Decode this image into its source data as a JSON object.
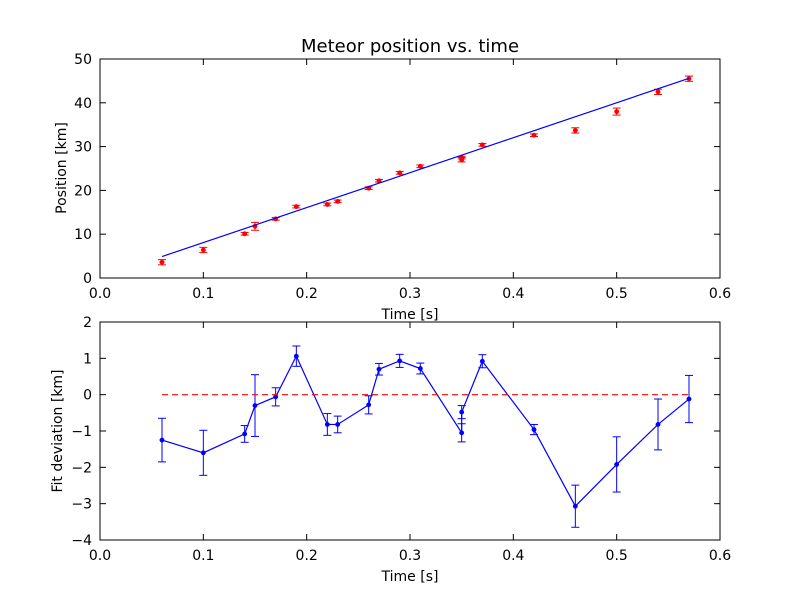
{
  "chart_data": [
    {
      "type": "scatter",
      "title": "Meteor position vs. time",
      "xlabel": "Time [s]",
      "ylabel": "Position [km]",
      "xlim": [
        0.0,
        0.6
      ],
      "ylim": [
        0,
        50
      ],
      "xticks": [
        "0.0",
        "0.1",
        "0.2",
        "0.3",
        "0.4",
        "0.5",
        "0.6"
      ],
      "yticks": [
        "0",
        "10",
        "20",
        "30",
        "40",
        "50"
      ],
      "grid": false,
      "series": [
        {
          "kind": "points_with_errorbars",
          "color": "#ff0000",
          "x": [
            0.06,
            0.1,
            0.14,
            0.15,
            0.17,
            0.19,
            0.22,
            0.23,
            0.26,
            0.27,
            0.29,
            0.31,
            0.35,
            0.35,
            0.37,
            0.42,
            0.46,
            0.5,
            0.54,
            0.57
          ],
          "y": [
            3.6,
            6.4,
            10.1,
            11.8,
            13.5,
            16.3,
            16.8,
            17.5,
            20.5,
            22.2,
            24.0,
            25.5,
            27.0,
            27.5,
            30.4,
            32.6,
            33.7,
            38.0,
            42.5,
            45.5
          ],
          "yerr": [
            0.6,
            0.6,
            0.3,
            0.9,
            0.3,
            0.3,
            0.3,
            0.3,
            0.3,
            0.3,
            0.3,
            0.3,
            0.5,
            0.3,
            0.3,
            0.3,
            0.6,
            0.8,
            0.6,
            0.6
          ]
        },
        {
          "kind": "fit_line",
          "color": "#0000ff",
          "x": [
            0.06,
            0.57
          ],
          "y": [
            4.9,
            45.6
          ]
        }
      ]
    },
    {
      "type": "line",
      "title": "",
      "xlabel": "Time [s]",
      "ylabel": "Fit deviation [km]",
      "xlim": [
        0.0,
        0.6
      ],
      "ylim": [
        -4,
        2
      ],
      "xticks": [
        "0.0",
        "0.1",
        "0.2",
        "0.3",
        "0.4",
        "0.5",
        "0.6"
      ],
      "yticks": [
        "−4",
        "−3",
        "−2",
        "−1",
        "0",
        "1",
        "2"
      ],
      "grid": false,
      "series": [
        {
          "kind": "line_with_errorbars",
          "color": "#0000ff",
          "x": [
            0.06,
            0.1,
            0.14,
            0.15,
            0.17,
            0.19,
            0.22,
            0.23,
            0.26,
            0.27,
            0.29,
            0.31,
            0.35,
            0.35,
            0.37,
            0.42,
            0.46,
            0.5,
            0.54,
            0.57
          ],
          "y": [
            -1.25,
            -1.6,
            -1.08,
            -0.3,
            -0.06,
            1.06,
            -0.82,
            -0.82,
            -0.28,
            0.7,
            0.93,
            0.72,
            -1.05,
            -0.48,
            0.92,
            -0.96,
            -3.07,
            -1.92,
            -0.82,
            -0.12
          ],
          "yerr": [
            0.6,
            0.62,
            0.23,
            0.85,
            0.25,
            0.28,
            0.3,
            0.23,
            0.25,
            0.16,
            0.18,
            0.15,
            0.25,
            0.18,
            0.18,
            0.14,
            0.58,
            0.76,
            0.7,
            0.65
          ]
        },
        {
          "kind": "reference_line",
          "color": "#ff0000",
          "dashed": true,
          "x": [
            0.06,
            0.57
          ],
          "y": [
            0,
            0
          ]
        }
      ]
    }
  ]
}
